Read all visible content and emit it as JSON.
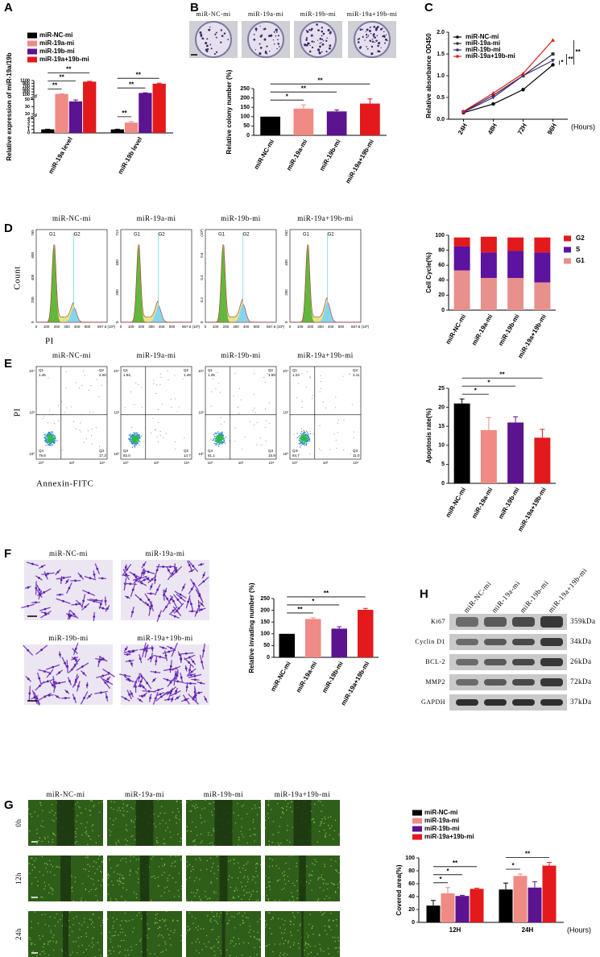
{
  "panel_labels": [
    "A",
    "B",
    "C",
    "D",
    "E",
    "F",
    "G",
    "H"
  ],
  "colony_assay": {
    "samples": [
      "miR-NC-mi",
      "miR-19a-mi",
      "miR-19b-mi",
      "miR-19a+19b-mi"
    ]
  },
  "cell_cycle_flow": {
    "samples": [
      {
        "name": "miR-NC-mi",
        "yticks": [
          "0",
          "200",
          "400",
          "600",
          "765"
        ]
      },
      {
        "name": "miR-19a-mi",
        "yticks": [
          "0",
          "200",
          "400",
          "713"
        ]
      },
      {
        "name": "miR-19b-mi",
        "yticks": [
          "0",
          "0.2",
          "0.4",
          "0.6",
          "(10³)"
        ]
      },
      {
        "name": "miR-19a+19b-mi",
        "yticks": [
          "0",
          "200",
          "400",
          "662"
        ]
      }
    ],
    "peaks": [
      "G1",
      "G2"
    ],
    "xticks": [
      "0",
      "100",
      "200",
      "300",
      "400",
      "500",
      "667.6 (10³)"
    ],
    "x_axis_label": "PI",
    "y_axis_label": "Count"
  },
  "apoptosis_flow": {
    "samples": [
      {
        "name": "miR-NC-mi",
        "quadrants": [
          "1.46",
          "2.05",
          "79.6",
          "17.3"
        ]
      },
      {
        "name": "miR-19a-mi",
        "quadrants": [
          "1.84",
          "1.49",
          "82.0",
          "14.7"
        ]
      },
      {
        "name": "miR-19b-mi",
        "quadrants": [
          "1.25",
          "1.69",
          "81.1",
          "15.9"
        ]
      },
      {
        "name": "miR-19a+19b-mi",
        "quadrants": [
          "1.23",
          "3.11",
          "84.7",
          "11.0"
        ]
      }
    ],
    "quadrant_names": [
      "Q1",
      "Q2",
      "Q4",
      "Q3"
    ],
    "axis_ticks": [
      "10⁰",
      "10²",
      "10⁴"
    ],
    "x_axis_label": "Annexin-FITC",
    "y_axis_label": "PI"
  },
  "invasion_assay": {
    "samples": [
      "miR-NC-mi",
      "miR-19a-mi",
      "miR-19b-mi",
      "miR-19a+19b-mi"
    ]
  },
  "western_blot": {
    "samples": [
      "miR-NC-mi",
      "miR-19a-mi",
      "miR-19b-mi",
      "miR-19a+19b-mi"
    ],
    "proteins": [
      {
        "name": "Ki67",
        "size": "359kDa"
      },
      {
        "name": "Cyclin D1",
        "size": "34kDa"
      },
      {
        "name": "BCL-2",
        "size": "26kDa"
      },
      {
        "name": "MMP2",
        "size": "72kDa"
      },
      {
        "name": "GAPDH",
        "size": "37kDa"
      }
    ]
  },
  "wound_healing": {
    "samples": [
      "miR-NC-mi",
      "miR-19a-mi",
      "miR-19b-mi",
      "miR-19a+19b-mi"
    ],
    "times": [
      "0h",
      "12h",
      "24h"
    ]
  },
  "chart_data": [
    {
      "type": "bar",
      "categories": [
        "miR-19a level",
        "miR-19b level"
      ],
      "y_label": "Relative expression of miR-19a/19b",
      "ylim": [
        0,
        1100
      ],
      "axis_breaks": [
        [
          4,
          10
        ],
        [
          50,
          100
        ]
      ],
      "yticks": [
        0,
        1,
        2,
        3,
        4,
        10,
        30,
        50,
        100,
        300,
        500,
        700,
        900,
        1100
      ],
      "legend": "top",
      "series": [
        {
          "name": "miR-NC-mi",
          "color": "#000000",
          "values": [
            1,
            1
          ],
          "errors": [
            0.05,
            0.05
          ]
        },
        {
          "name": "miR-19a-mi",
          "color": "#f08a84",
          "values": [
            160,
            2.9
          ],
          "errors": [
            8,
            0.3
          ]
        },
        {
          "name": "miR-19b-mi",
          "color": "#5b138f",
          "values": [
            45,
            230
          ],
          "errors": [
            4,
            10
          ]
        },
        {
          "name": "miR-19a+19b-mi",
          "color": "#e3191c",
          "values": [
            1020,
            880
          ],
          "errors": [
            30,
            40
          ]
        }
      ],
      "significance": [
        {
          "label": "**",
          "group": 0,
          "from": 0,
          "to": 1
        },
        {
          "label": "**",
          "group": 0,
          "from": 0,
          "to": 2
        },
        {
          "label": "**",
          "group": 0,
          "from": 0,
          "to": 3
        },
        {
          "label": "**",
          "group": 1,
          "from": 0,
          "to": 1
        },
        {
          "label": "**",
          "group": 1,
          "from": 0,
          "to": 2
        },
        {
          "label": "**",
          "group": 1,
          "from": 0,
          "to": 3
        }
      ]
    },
    {
      "type": "bar",
      "categories": [
        "miR-NC-mi",
        "miR-19a-mi",
        "miR-19b-mi",
        "miR-19a+19b-mi"
      ],
      "values": [
        100,
        143,
        128,
        170
      ],
      "errors": [
        0,
        20,
        8,
        25
      ],
      "colors": [
        "#000000",
        "#f08a84",
        "#5b138f",
        "#e3191c"
      ],
      "y_label": "Relative colony number (%)",
      "ylim": [
        0,
        250
      ],
      "yticks": [
        0,
        50,
        100,
        150,
        200,
        250
      ],
      "significance": [
        {
          "label": "*",
          "from": 0,
          "to": 1
        },
        {
          "label": "**",
          "from": 0,
          "to": 2
        },
        {
          "label": "**",
          "from": 0,
          "to": 3
        }
      ]
    },
    {
      "type": "line",
      "categories": [
        "24H",
        "48H",
        "72H",
        "96H"
      ],
      "x_label": "(Hours)",
      "y_label": "Relative absorbance OD450",
      "ylim": [
        0,
        2
      ],
      "yticks": [
        {
          "value": 0,
          "label": "0.0"
        },
        0.5,
        {
          "value": 1,
          "label": "1.0"
        },
        1.5,
        {
          "value": 2,
          "label": "2.0"
        }
      ],
      "legend": "upper left",
      "series": [
        {
          "name": "miR-NC-mi",
          "color": "#000000",
          "marker": "circle",
          "values": [
            0.15,
            0.35,
            0.68,
            1.25
          ]
        },
        {
          "name": "miR-19a-mi",
          "color": "#333333",
          "marker": "square",
          "values": [
            0.17,
            0.55,
            1.0,
            1.5
          ]
        },
        {
          "name": "miR-19b-mi",
          "color": "#3b2a8a",
          "marker": "triangle-down",
          "values": [
            0.16,
            0.5,
            1.0,
            1.35
          ]
        },
        {
          "name": "miR-19a+19b-mi",
          "color": "#e3191c",
          "marker": "triangle",
          "values": [
            0.18,
            0.6,
            1.05,
            1.82
          ]
        }
      ],
      "significance": [
        {
          "label": "*",
          "from": 0,
          "to": 2
        },
        {
          "label": "**",
          "from": 0,
          "to": 1
        },
        {
          "label": "**",
          "from": 0,
          "to": 3
        }
      ]
    },
    {
      "type": "bar",
      "stacked": true,
      "categories": [
        "miR-NC-mi",
        "miR-19a-mi",
        "miR-19b-mi",
        "miR-19a+19b-mi"
      ],
      "y_label": "Cell Cycle(%)",
      "ylim": [
        0,
        100
      ],
      "yticks": [
        0,
        20,
        40,
        60,
        80,
        100
      ],
      "legend": "right",
      "series": [
        {
          "name": "G1",
          "color": "#e8908c",
          "values": [
            53,
            43,
            43,
            37
          ]
        },
        {
          "name": "S",
          "color": "#5b13a0",
          "values": [
            32,
            34,
            36,
            40
          ]
        },
        {
          "name": "G2",
          "color": "#e31a1c",
          "values": [
            12,
            21,
            18,
            20
          ]
        }
      ]
    },
    {
      "type": "bar",
      "categories": [
        "miR-NC-mi",
        "miR-19a-mi",
        "miR-19b-mi",
        "miR-19a+19b-mi"
      ],
      "values": [
        21,
        14,
        16,
        12
      ],
      "errors": [
        1.2,
        3.3,
        1.5,
        2.2
      ],
      "colors": [
        "#000000",
        "#f08a84",
        "#5b138f",
        "#e3191c"
      ],
      "y_label": "Apoptosis rate(%)",
      "ylim": [
        0,
        25
      ],
      "yticks": [
        0,
        5,
        10,
        15,
        20,
        25
      ],
      "significance": [
        {
          "label": "*",
          "from": 0,
          "to": 1
        },
        {
          "label": "*",
          "from": 0,
          "to": 2
        },
        {
          "label": "**",
          "from": 0,
          "to": 3
        }
      ]
    },
    {
      "type": "bar",
      "categories": [
        "miR-NC-mi",
        "miR-19a-mi",
        "miR-19b-mi",
        "miR-19a+19b-mi"
      ],
      "values": [
        100,
        163,
        122,
        202
      ],
      "errors": [
        0,
        5,
        8,
        6
      ],
      "colors": [
        "#000000",
        "#f08a84",
        "#5b138f",
        "#e3191c"
      ],
      "y_label": "Relative invading number (%)",
      "ylim": [
        0,
        250
      ],
      "yticks": [
        0,
        50,
        100,
        150,
        200,
        250
      ],
      "significance": [
        {
          "label": "**",
          "from": 0,
          "to": 1
        },
        {
          "label": "*",
          "from": 0,
          "to": 2
        },
        {
          "label": "**",
          "from": 0,
          "to": 3
        }
      ]
    },
    {
      "type": "bar",
      "categories": [
        "12H",
        "24H"
      ],
      "x_label": "(Hours)",
      "y_label": "Covered area(%)",
      "ylim": [
        0,
        100
      ],
      "yticks": [
        0,
        20,
        40,
        60,
        80,
        100
      ],
      "legend": "top",
      "series": [
        {
          "name": "miR-NC-mi",
          "color": "#000000",
          "values": [
            26,
            51
          ],
          "errors": [
            8,
            10
          ]
        },
        {
          "name": "miR-19a-mi",
          "color": "#f08a84",
          "values": [
            45,
            72
          ],
          "errors": [
            9,
            3
          ]
        },
        {
          "name": "miR-19b-mi",
          "color": "#5b138f",
          "values": [
            41,
            54
          ],
          "errors": [
            1,
            9
          ]
        },
        {
          "name": "miR-19a+19b-mi",
          "color": "#e3191c",
          "values": [
            52,
            88
          ],
          "errors": [
            1,
            5
          ]
        }
      ],
      "significance": [
        {
          "label": "*",
          "group": 0,
          "from": 0,
          "to": 1
        },
        {
          "label": "*",
          "group": 0,
          "from": 0,
          "to": 2
        },
        {
          "label": "**",
          "group": 0,
          "from": 0,
          "to": 3
        },
        {
          "label": "*",
          "group": 1,
          "from": 0,
          "to": 1
        },
        {
          "label": "**",
          "group": 1,
          "from": 0,
          "to": 3
        }
      ]
    }
  ]
}
